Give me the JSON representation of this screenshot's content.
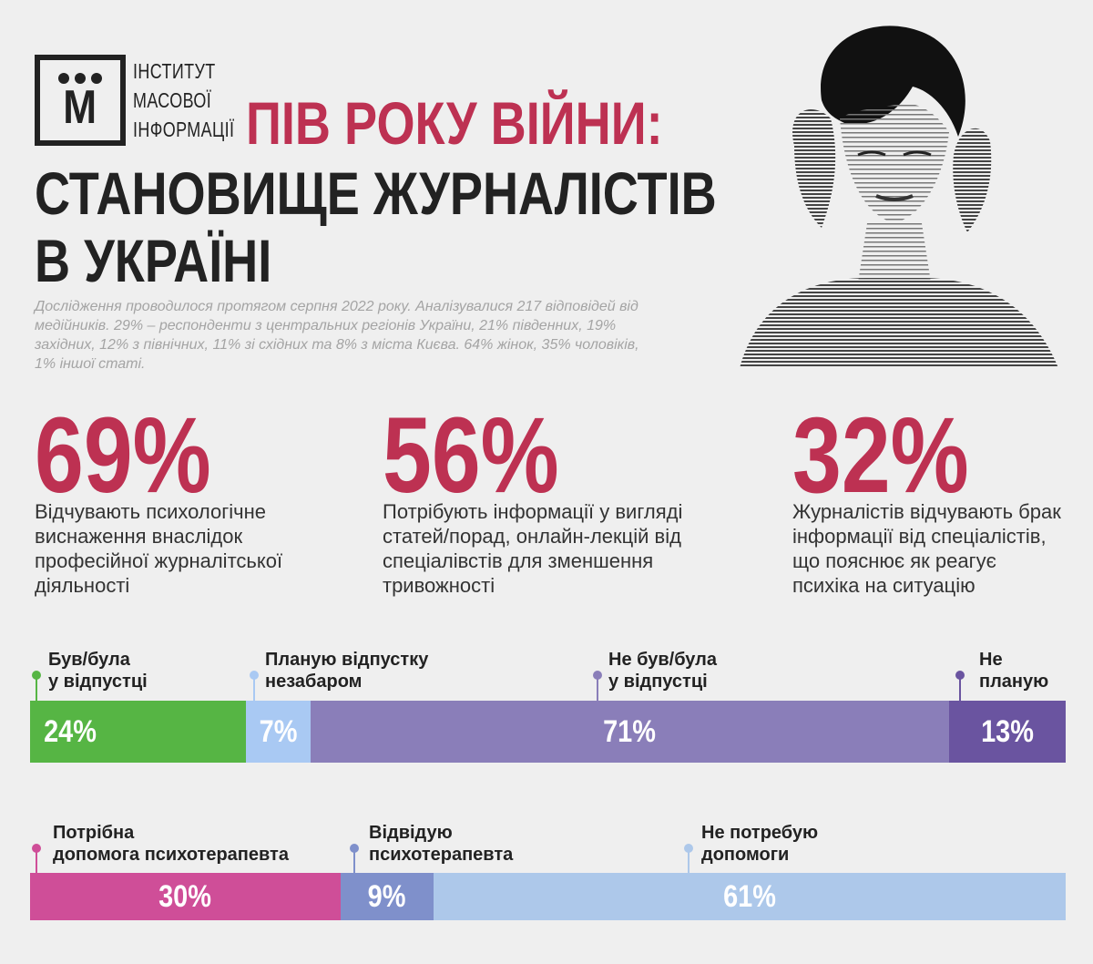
{
  "logo": {
    "letter": "М",
    "lines": [
      "ІНСТИТУТ",
      "МАСОВОЇ",
      "ІНФОРМАЦІЇ"
    ]
  },
  "title": {
    "line1": "ПІВ РОКУ ВІЙНИ:",
    "line2": "СТАНОВИЩЕ ЖУРНАЛІСТІВ",
    "line3": "В УКРАЇНІ"
  },
  "intro": "Дослідження проводилося протягом серпня 2022 року. Аналізувалися 217 відповідей від медійників. 29% – респонденти з центральних регіонів України, 21% південних, 19% західних, 12% з північних, 11% зі східних та 8% з міста Києва. 64% жінок, 35% чоловіків, 1% іншої статі.",
  "stats": [
    {
      "value": "69%",
      "text": "Відчувають психологічне виснаження внаслідок професійної журналітської діяльності"
    },
    {
      "value": "56%",
      "text": "Потрібують інформації у вигляді статей/порад, онлайн-лекцій від спеціалівстів для зменшення тривожності"
    },
    {
      "value": "32%",
      "text": "Журналістів відчувають брак інформації від спеціалістів, що пояснює як реагує психіка на ситуацію"
    }
  ],
  "vacation": {
    "segments": [
      {
        "label_lines": [
          "Був/була",
          "у відпустці"
        ],
        "value": "24%",
        "color": "#56b544"
      },
      {
        "label_lines": [
          "Планую відпустку",
          "незабаром"
        ],
        "value": "7%",
        "color": "#a9c9f3"
      },
      {
        "label_lines": [
          "Не був/була",
          "у відпустці"
        ],
        "value": "71%",
        "color": "#8a7eb9"
      },
      {
        "label_lines": [
          "Не",
          "планую"
        ],
        "value": "13%",
        "color": "#6a54a0"
      }
    ]
  },
  "therapy": {
    "segments": [
      {
        "label_lines": [
          "Потрібна",
          "допомога психотерапевта"
        ],
        "value": "30%",
        "color": "#cf4e98"
      },
      {
        "label_lines": [
          "Відвідую",
          "психотерапевта"
        ],
        "value": "9%",
        "color": "#7f90cb"
      },
      {
        "label_lines": [
          "Не потребую",
          "допомоги"
        ],
        "value": "61%",
        "color": "#adc8ea"
      }
    ]
  },
  "colors": {
    "accent": "#bd3152",
    "muted_text": "#a4a4a4",
    "background": "#efefef"
  }
}
